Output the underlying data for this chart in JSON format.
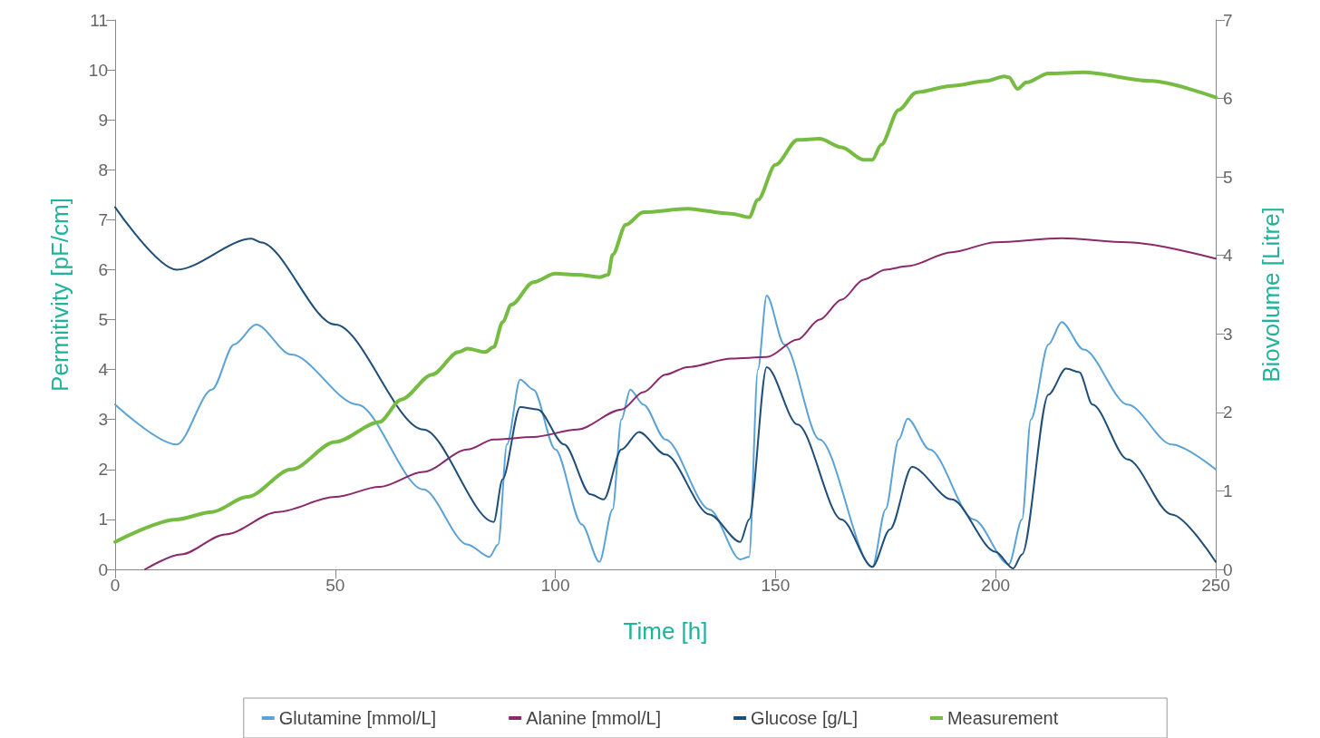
{
  "chart_data": {
    "type": "line",
    "xlabel": "Time [h]",
    "ylabel": "Permitivity [pF/cm]",
    "y2label": "Biovolume [Litre]",
    "xlim": [
      0,
      250
    ],
    "xticks": [
      0,
      50,
      100,
      150,
      200,
      250
    ],
    "ylim": [
      0,
      11
    ],
    "yticks": [
      0,
      1,
      2,
      3,
      4,
      5,
      6,
      7,
      8,
      9,
      10,
      11
    ],
    "y2lim": [
      0,
      7
    ],
    "y2ticks": [
      0,
      1,
      2,
      3,
      4,
      5,
      6,
      7
    ],
    "grid": false,
    "legend": "bottom",
    "marker": "none",
    "line_style": "solid",
    "series": [
      {
        "name": "Glutamine [mmol/L]",
        "color": "#5ba3d6",
        "x": [
          0,
          14,
          22,
          27,
          32,
          40,
          55,
          70,
          80,
          85,
          87,
          89,
          92,
          95,
          100,
          106,
          110,
          113,
          115,
          117,
          120,
          125,
          135,
          142,
          144,
          146,
          148,
          152,
          160,
          172,
          175,
          178,
          180,
          185,
          195,
          203,
          206,
          208,
          212,
          215,
          220,
          230,
          240,
          250
        ],
        "values": [
          3.3,
          2.5,
          3.6,
          4.5,
          4.9,
          4.3,
          3.3,
          1.6,
          0.5,
          0.25,
          0.5,
          2.5,
          3.8,
          3.6,
          2.4,
          0.9,
          0.15,
          1.2,
          3.0,
          3.6,
          3.3,
          2.6,
          1.2,
          0.2,
          0.25,
          4.0,
          5.48,
          4.5,
          2.6,
          0.05,
          1.2,
          2.6,
          3.02,
          2.4,
          1.0,
          0.1,
          1.0,
          3.0,
          4.5,
          4.95,
          4.4,
          3.3,
          2.5,
          2.0
        ]
      },
      {
        "name": "Alanine [mmol/L]",
        "color": "#8b2a6b",
        "x": [
          6.8,
          15,
          25,
          37,
          50,
          60,
          70,
          80,
          86,
          95,
          105,
          115,
          120,
          125,
          130,
          140,
          148,
          155,
          160,
          165,
          170,
          175,
          180,
          190,
          200,
          215,
          230,
          250
        ],
        "values": [
          0,
          0.3,
          0.7,
          1.15,
          1.45,
          1.65,
          1.95,
          2.4,
          2.6,
          2.65,
          2.8,
          3.2,
          3.55,
          3.9,
          4.05,
          4.22,
          4.25,
          4.6,
          5.0,
          5.4,
          5.8,
          6.0,
          6.07,
          6.35,
          6.55,
          6.63,
          6.55,
          6.22
        ]
      },
      {
        "name": "Glucose [g/L]",
        "color": "#1f4e79",
        "x": [
          0,
          14,
          31,
          33,
          50,
          70,
          86,
          88,
          92,
          96,
          102,
          108,
          111,
          115,
          119,
          125,
          135,
          142,
          144,
          148,
          155,
          165,
          172,
          176,
          181,
          190,
          200,
          204,
          206,
          212,
          216,
          219,
          222,
          230,
          240,
          250
        ],
        "values": [
          7.25,
          6.0,
          6.62,
          6.55,
          4.9,
          2.8,
          0.95,
          1.8,
          3.25,
          3.2,
          2.5,
          1.5,
          1.4,
          2.4,
          2.75,
          2.3,
          1.1,
          0.55,
          1.0,
          4.05,
          2.9,
          1.0,
          0.05,
          0.8,
          2.05,
          1.4,
          0.35,
          0.02,
          0.3,
          3.5,
          4.02,
          3.95,
          3.3,
          2.2,
          1.1,
          0.15
        ]
      },
      {
        "name": "Measurement",
        "color": "#76bc43",
        "x": [
          0,
          14,
          22,
          30,
          40,
          50,
          60,
          65,
          72,
          78,
          80,
          84,
          86,
          88,
          90,
          95,
          100,
          105,
          110,
          112,
          113,
          116,
          120,
          130,
          140,
          144,
          146,
          150,
          155,
          160,
          165,
          170,
          172,
          174,
          178,
          182,
          190,
          198,
          202,
          203,
          205,
          207,
          212,
          220,
          235,
          250
        ],
        "values": [
          0.55,
          1.0,
          1.15,
          1.45,
          2.0,
          2.55,
          2.95,
          3.4,
          3.9,
          4.35,
          4.42,
          4.35,
          4.45,
          4.95,
          5.3,
          5.75,
          5.92,
          5.9,
          5.85,
          5.9,
          6.3,
          6.9,
          7.15,
          7.22,
          7.12,
          7.05,
          7.4,
          8.1,
          8.6,
          8.62,
          8.45,
          8.2,
          8.2,
          8.5,
          9.2,
          9.55,
          9.68,
          9.78,
          9.87,
          9.85,
          9.62,
          9.75,
          9.93,
          9.95,
          9.78,
          9.45
        ]
      }
    ]
  }
}
